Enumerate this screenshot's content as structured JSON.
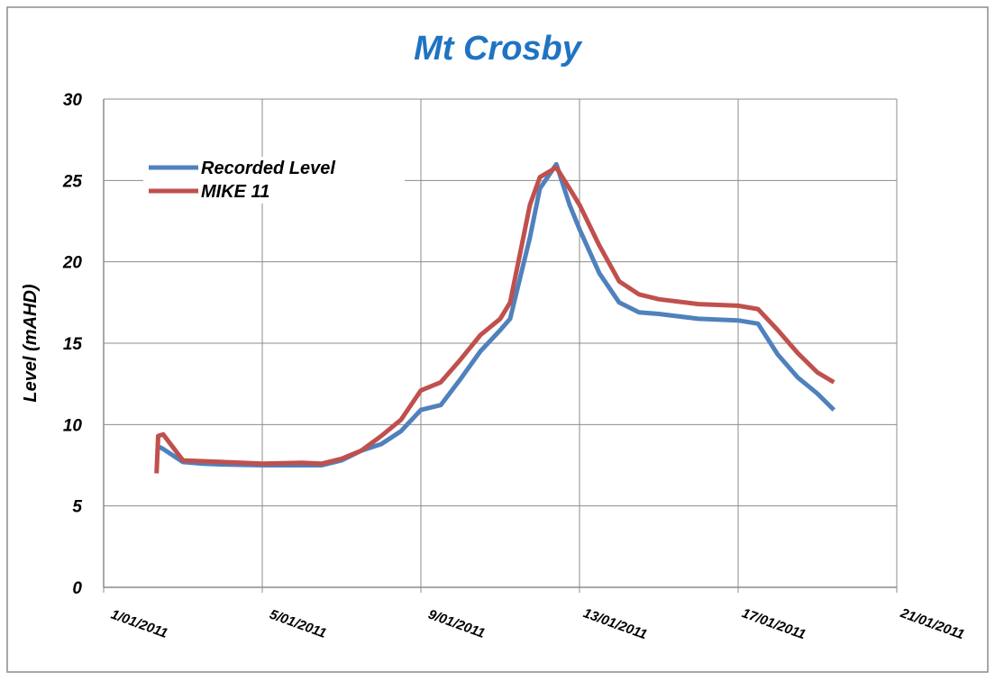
{
  "chart_data": {
    "type": "line",
    "title": "Mt Crosby",
    "y_label": "Level (mAHD)",
    "xlim": [
      "2011-01-01",
      "2011-01-21"
    ],
    "xticks": [
      {
        "value": "2011-01-01",
        "label": "1/01/2011"
      },
      {
        "value": "2011-01-05",
        "label": "5/01/2011"
      },
      {
        "value": "2011-01-09",
        "label": "9/01/2011"
      },
      {
        "value": "2011-01-13",
        "label": "13/01/2011"
      },
      {
        "value": "2011-01-17",
        "label": "17/01/2011"
      },
      {
        "value": "2011-01-21",
        "label": "21/01/2011"
      }
    ],
    "ylim": [
      0,
      30
    ],
    "yticks": [
      0,
      5,
      10,
      15,
      20,
      25,
      30
    ],
    "grid": true,
    "legend": "upper left",
    "series": [
      {
        "name": "Recorded Level",
        "color": "#4f81bd",
        "x": [
          "2011-01-02T08:00",
          "2011-01-02T12:00",
          "2011-01-03T00:00",
          "2011-01-03T12:00",
          "2011-01-04T00:00",
          "2011-01-05T00:00",
          "2011-01-06T00:00",
          "2011-01-06T12:00",
          "2011-01-07T00:00",
          "2011-01-07T12:00",
          "2011-01-08T00:00",
          "2011-01-08T12:00",
          "2011-01-09T00:00",
          "2011-01-09T12:00",
          "2011-01-10T00:00",
          "2011-01-10T12:00",
          "2011-01-11T00:00",
          "2011-01-11T06:00",
          "2011-01-11T12:00",
          "2011-01-11T18:00",
          "2011-01-12T00:00",
          "2011-01-12T10:00",
          "2011-01-12T18:00",
          "2011-01-13T00:00",
          "2011-01-13T12:00",
          "2011-01-14T00:00",
          "2011-01-14T12:00",
          "2011-01-15T00:00",
          "2011-01-16T00:00",
          "2011-01-17T00:00",
          "2011-01-17T12:00",
          "2011-01-18T00:00",
          "2011-01-18T12:00",
          "2011-01-19T00:00",
          "2011-01-19T10:00"
        ],
        "values": [
          8.7,
          8.5,
          7.7,
          7.6,
          7.55,
          7.5,
          7.5,
          7.5,
          7.8,
          8.4,
          8.8,
          9.6,
          10.9,
          11.2,
          12.8,
          14.5,
          15.8,
          16.5,
          19.0,
          21.5,
          24.5,
          26.0,
          23.5,
          22.0,
          19.3,
          17.5,
          16.9,
          16.8,
          16.5,
          16.4,
          16.2,
          14.3,
          12.9,
          11.9,
          10.9
        ]
      },
      {
        "name": "MIKE 11",
        "color": "#c0504d",
        "x": [
          "2011-01-02T08:00",
          "2011-01-02T09:00",
          "2011-01-02T12:00",
          "2011-01-03T00:00",
          "2011-01-04T00:00",
          "2011-01-05T00:00",
          "2011-01-06T00:00",
          "2011-01-06T12:00",
          "2011-01-07T00:00",
          "2011-01-07T12:00",
          "2011-01-08T00:00",
          "2011-01-08T12:00",
          "2011-01-09T00:00",
          "2011-01-09T12:00",
          "2011-01-10T00:00",
          "2011-01-10T12:00",
          "2011-01-11T00:00",
          "2011-01-11T06:00",
          "2011-01-11T12:00",
          "2011-01-11T18:00",
          "2011-01-12T00:00",
          "2011-01-12T10:00",
          "2011-01-12T18:00",
          "2011-01-13T00:00",
          "2011-01-13T12:00",
          "2011-01-14T00:00",
          "2011-01-14T12:00",
          "2011-01-15T00:00",
          "2011-01-16T00:00",
          "2011-01-17T00:00",
          "2011-01-17T12:00",
          "2011-01-18T00:00",
          "2011-01-18T12:00",
          "2011-01-19T00:00",
          "2011-01-19T10:00"
        ],
        "values": [
          7.0,
          9.3,
          9.4,
          7.8,
          7.7,
          7.6,
          7.65,
          7.6,
          7.9,
          8.4,
          9.3,
          10.3,
          12.1,
          12.6,
          14.0,
          15.5,
          16.5,
          17.5,
          20.5,
          23.5,
          25.2,
          25.8,
          24.5,
          23.5,
          21.0,
          18.8,
          18.0,
          17.7,
          17.4,
          17.3,
          17.1,
          15.8,
          14.4,
          13.2,
          12.6
        ]
      }
    ]
  }
}
